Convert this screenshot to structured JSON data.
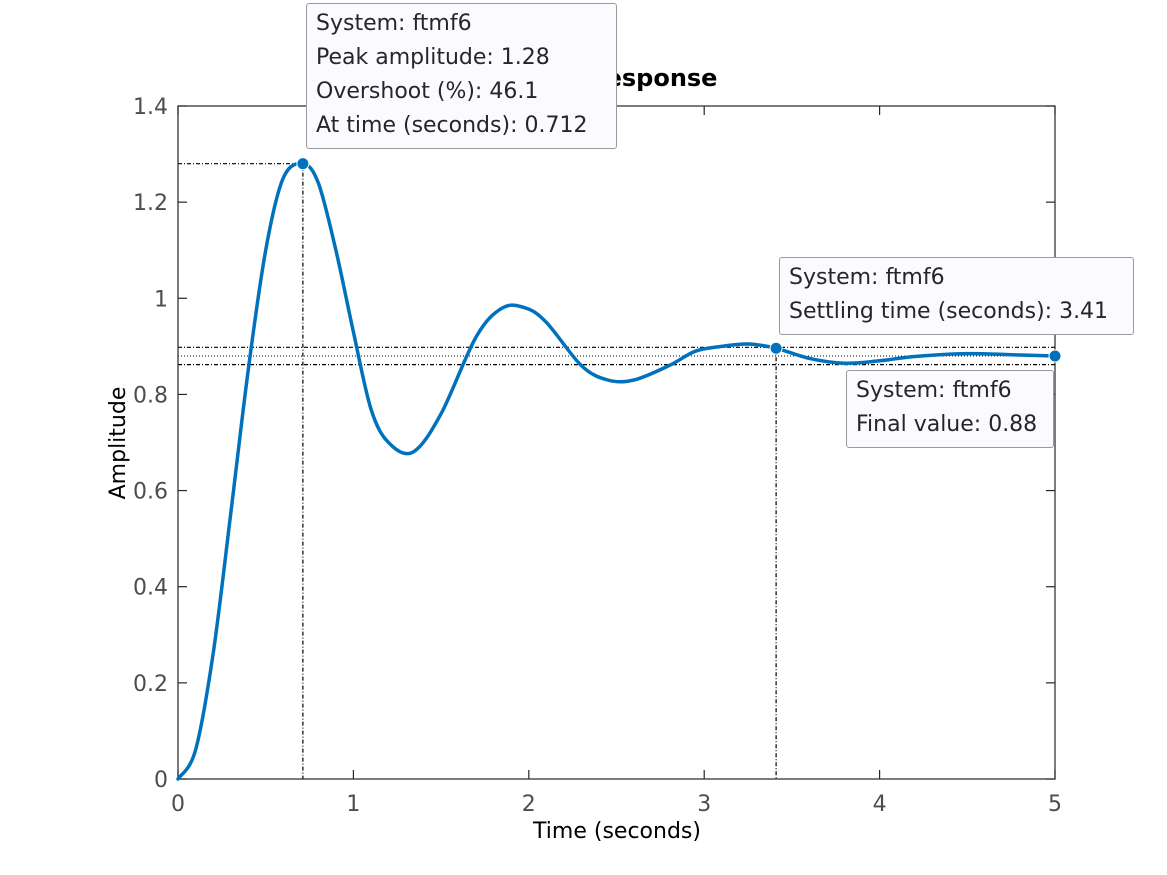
{
  "chart_data": {
    "type": "line",
    "title": "Step Response",
    "xlabel": "Time (seconds)",
    "ylabel": "Amplitude",
    "xlim": [
      0,
      5
    ],
    "ylim": [
      0,
      1.4
    ],
    "x_ticks": [
      "0",
      "1",
      "2",
      "3",
      "4",
      "5"
    ],
    "y_ticks": [
      "0",
      "0.2",
      "0.4",
      "0.6",
      "0.8",
      "1",
      "1.2",
      "1.4"
    ],
    "grid": false,
    "legend": "none",
    "series": [
      {
        "color": "#0072bd",
        "x": [
          0,
          0.1,
          0.2,
          0.3,
          0.4,
          0.5,
          0.6,
          0.712,
          0.8,
          0.9,
          1.0,
          1.1,
          1.2,
          1.34,
          1.5,
          1.7,
          1.85,
          1.98,
          2.1,
          2.3,
          2.45,
          2.6,
          2.8,
          2.95,
          3.1,
          3.25,
          3.41,
          3.6,
          3.8,
          4.0,
          4.2,
          4.5,
          4.8,
          5.0
        ],
        "y": [
          0,
          0.06,
          0.26,
          0.55,
          0.85,
          1.1,
          1.25,
          1.28,
          1.24,
          1.1,
          0.93,
          0.77,
          0.7,
          0.68,
          0.76,
          0.92,
          0.98,
          0.98,
          0.95,
          0.86,
          0.83,
          0.83,
          0.86,
          0.89,
          0.9,
          0.905,
          0.896,
          0.875,
          0.865,
          0.87,
          0.879,
          0.885,
          0.882,
          0.88
        ]
      }
    ],
    "markers": [
      {
        "x": 0.712,
        "y": 1.28
      },
      {
        "x": 3.41,
        "y": 0.896
      },
      {
        "x": 5.0,
        "y": 0.88
      }
    ],
    "reference_lines": {
      "peak_time": 0.712,
      "peak_amplitude": 1.28,
      "settling_time": 3.41,
      "settling_band": [
        0.862,
        0.898
      ],
      "final_value": 0.88
    },
    "annotations": {
      "peak": {
        "system": "System: ftmf6",
        "amplitude": "Peak amplitude: 1.28",
        "overshoot": "Overshoot (%): 46.1",
        "time": "At time (seconds): 0.712"
      },
      "settling": {
        "system": "System: ftmf6",
        "time": "Settling time (seconds): 3.41"
      },
      "final": {
        "system": "System: ftmf6",
        "value": "Final value: 0.88"
      }
    }
  }
}
